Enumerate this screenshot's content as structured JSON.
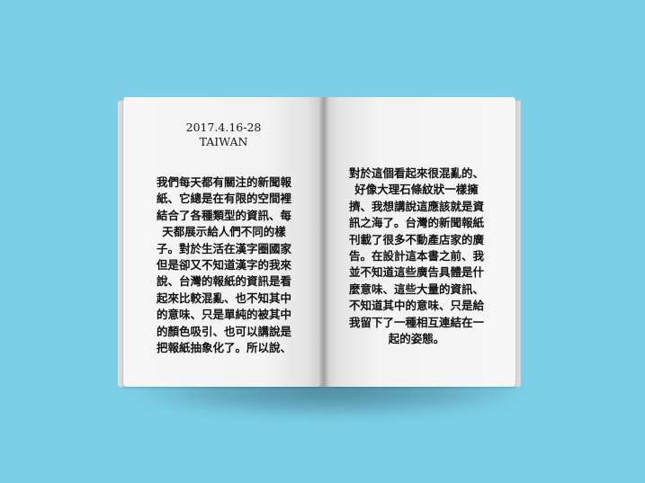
{
  "book": {
    "date": "2017.4.16-28",
    "place": "TAIWAN",
    "left_lines": [
      "我們每天都有關注的新聞報",
      "紙、它總是在有限的空間裡",
      "結合了各種類型的資訊、每",
      "天都展示給人們不同的樣",
      "子。對於生活在漢字圈國家",
      "但是卻又不知道漢字的我來",
      "說、台灣的報紙的資訊是看",
      "起來比較混亂、也不知其中",
      "的意味、只是單純的被其中",
      "的顏色吸引、也可以講說是",
      "把報紙抽象化了。所以說、"
    ],
    "right_lines": [
      "對於這個看起來很混亂的、",
      "好像大理石條紋狀一樣擁",
      "擠、我想講說這應該就是資",
      "訊之海了。台灣的新聞報紙",
      "刊載了很多不動產店家的廣",
      "告。在設計這本書之前、我",
      "並不知道這些廣告具體是什",
      "麼意味、這些大量的資訊、",
      "不知道其中的意味、只是給",
      "我留下了一種相互連結在一",
      "起的姿態。"
    ]
  },
  "colors": {
    "background": "#7ccfe6",
    "page": "#f4f4f4",
    "text": "#111111"
  }
}
